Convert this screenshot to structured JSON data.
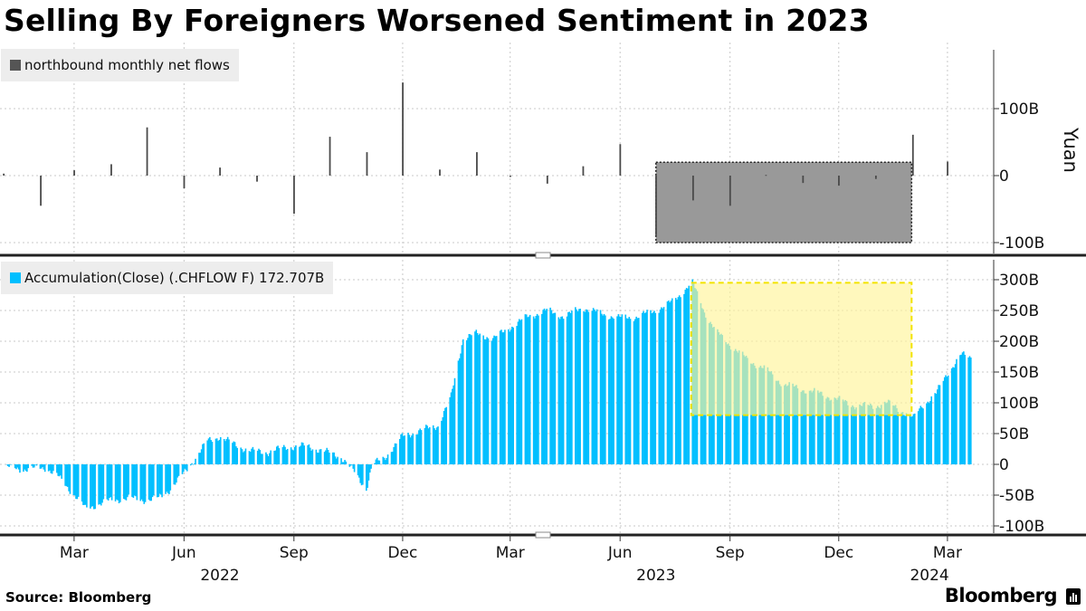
{
  "title": "Selling By Foreigners Worsened Sentiment in 2023",
  "source": "Source: Bloomberg",
  "brand": "Bloomberg",
  "colors": {
    "bar": "#4a4a4a",
    "area": "#00bfff",
    "box_gray": "#999999",
    "box_yellow": "#fff59a",
    "box_yellow_border": "#f2e300",
    "overlap_green": "#5fd19b",
    "grid": "#c8c8c8",
    "panel_border": "#222222"
  },
  "chart_data": [
    {
      "type": "bar",
      "name": "northbound monthly net flows",
      "legend": "northbound monthly net flows",
      "ylabel": "Yuan",
      "yticks": [
        "100B",
        "0",
        "-100B"
      ],
      "ylim": [
        -100,
        180
      ],
      "x": [
        "2022-01",
        "2022-02",
        "2022-03",
        "2022-04",
        "2022-05",
        "2022-06",
        "2022-07",
        "2022-08",
        "2022-09",
        "2022-10",
        "2022-11",
        "2022-12",
        "2023-01",
        "2023-02",
        "2023-03",
        "2023-04",
        "2023-05",
        "2023-06",
        "2023-07",
        "2023-08",
        "2023-09",
        "2023-10",
        "2023-11",
        "2023-12",
        "2024-01",
        "2024-02",
        "2024-03"
      ],
      "values": [
        3,
        -45,
        8,
        17,
        72,
        -19,
        12,
        -9,
        -57,
        58,
        35,
        139,
        9,
        35,
        -2,
        -12,
        14,
        47,
        -89,
        -37,
        -45,
        1,
        -11,
        -15,
        -5,
        61,
        21
      ],
      "highlight_box": {
        "start": "2023-07-01",
        "end": "2024-01-31",
        "ymin": -100,
        "ymax": 20
      }
    },
    {
      "type": "area",
      "name": "Accumulation(Close) (.CHFLOW F)",
      "legend": "Accumulation(Close) (.CHFLOW F) 172.707B",
      "last_value": "172.707B",
      "yticks": [
        "300B",
        "250B",
        "200B",
        "150B",
        "100B",
        "50B",
        "0",
        "-50B",
        "-100B"
      ],
      "ylim": [
        -100,
        300
      ],
      "points": [
        [
          "2022-01-03",
          -5
        ],
        [
          "2022-01-20",
          -8
        ],
        [
          "2022-02-05",
          -5
        ],
        [
          "2022-02-15",
          -20
        ],
        [
          "2022-03-01",
          -50
        ],
        [
          "2022-03-10",
          -72
        ],
        [
          "2022-03-20",
          -65
        ],
        [
          "2022-04-01",
          -58
        ],
        [
          "2022-04-15",
          -55
        ],
        [
          "2022-05-01",
          -58
        ],
        [
          "2022-05-10",
          -55
        ],
        [
          "2022-05-20",
          -40
        ],
        [
          "2022-05-31",
          -15
        ],
        [
          "2022-06-10",
          10
        ],
        [
          "2022-06-20",
          38
        ],
        [
          "2022-06-30",
          45
        ],
        [
          "2022-07-10",
          35
        ],
        [
          "2022-07-25",
          22
        ],
        [
          "2022-08-10",
          20
        ],
        [
          "2022-08-25",
          28
        ],
        [
          "2022-09-10",
          30
        ],
        [
          "2022-09-25",
          22
        ],
        [
          "2022-10-10",
          12
        ],
        [
          "2022-10-20",
          -10
        ],
        [
          "2022-10-31",
          -40
        ],
        [
          "2022-11-05",
          0
        ],
        [
          "2022-11-15",
          10
        ],
        [
          "2022-11-30",
          45
        ],
        [
          "2022-12-15",
          55
        ],
        [
          "2022-12-30",
          63
        ],
        [
          "2023-01-10",
          110
        ],
        [
          "2023-01-20",
          205
        ],
        [
          "2023-01-31",
          212
        ],
        [
          "2023-02-15",
          205
        ],
        [
          "2023-02-28",
          222
        ],
        [
          "2023-03-15",
          240
        ],
        [
          "2023-03-31",
          250
        ],
        [
          "2023-04-15",
          240
        ],
        [
          "2023-04-30",
          255
        ],
        [
          "2023-05-15",
          245
        ],
        [
          "2023-05-31",
          238
        ],
        [
          "2023-06-15",
          240
        ],
        [
          "2023-06-30",
          250
        ],
        [
          "2023-07-15",
          265
        ],
        [
          "2023-07-25",
          285
        ],
        [
          "2023-07-31",
          295
        ],
        [
          "2023-08-10",
          248
        ],
        [
          "2023-08-20",
          215
        ],
        [
          "2023-08-31",
          195
        ],
        [
          "2023-09-15",
          170
        ],
        [
          "2023-09-30",
          155
        ],
        [
          "2023-10-15",
          130
        ],
        [
          "2023-10-31",
          122
        ],
        [
          "2023-11-15",
          115
        ],
        [
          "2023-11-30",
          105
        ],
        [
          "2023-12-15",
          95
        ],
        [
          "2023-12-31",
          95
        ],
        [
          "2024-01-10",
          100
        ],
        [
          "2024-01-20",
          90
        ],
        [
          "2024-02-01",
          75
        ],
        [
          "2024-02-08",
          95
        ],
        [
          "2024-02-20",
          115
        ],
        [
          "2024-03-01",
          150
        ],
        [
          "2024-03-12",
          178
        ],
        [
          "2024-03-20",
          173
        ]
      ],
      "highlight_box": {
        "start": "2023-08-01",
        "end": "2024-01-31",
        "ymin": 80,
        "ymax": 295
      }
    }
  ],
  "x_axis": {
    "months": [
      {
        "label": "Mar",
        "date": "2022-03-01"
      },
      {
        "label": "Jun",
        "date": "2022-06-01"
      },
      {
        "label": "Sep",
        "date": "2022-09-01"
      },
      {
        "label": "Dec",
        "date": "2022-12-01"
      },
      {
        "label": "Mar",
        "date": "2023-03-01"
      },
      {
        "label": "Jun",
        "date": "2023-06-01"
      },
      {
        "label": "Sep",
        "date": "2023-09-01"
      },
      {
        "label": "Dec",
        "date": "2023-12-01"
      },
      {
        "label": "Mar",
        "date": "2024-03-01"
      }
    ],
    "years": [
      {
        "label": "2022",
        "date": "2022-07-01"
      },
      {
        "label": "2023",
        "date": "2023-07-01"
      },
      {
        "label": "2024",
        "date": "2024-02-15"
      }
    ]
  }
}
